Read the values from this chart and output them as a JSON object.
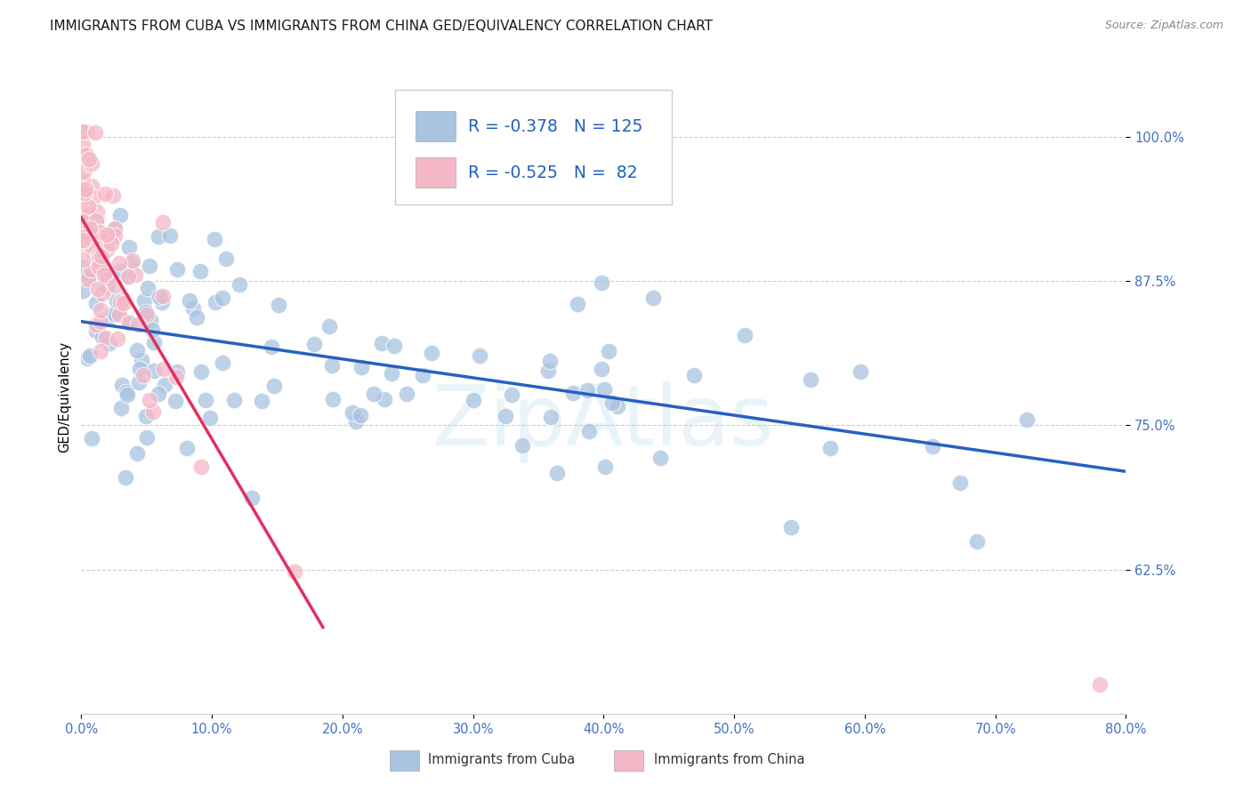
{
  "title": "IMMIGRANTS FROM CUBA VS IMMIGRANTS FROM CHINA GED/EQUIVALENCY CORRELATION CHART",
  "source": "Source: ZipAtlas.com",
  "ylabel": "GED/Equivalency",
  "yticks": [
    0.625,
    0.75,
    0.875,
    1.0
  ],
  "ytick_labels": [
    "62.5%",
    "75.0%",
    "87.5%",
    "100.0%"
  ],
  "xmin": 0.0,
  "xmax": 0.8,
  "ymin": 0.5,
  "ymax": 1.05,
  "cuba_color": "#a8c4e0",
  "china_color": "#f4b8c8",
  "cuba_line_color": "#2860c0",
  "china_line_color": "#e03060",
  "cuba_R": -0.378,
  "cuba_N": 125,
  "china_R": -0.525,
  "china_N": 82,
  "legend_text_color": "#2060c0",
  "title_color": "#1a1a1a",
  "source_color": "#888888",
  "axis_label_color": "#4472c4",
  "grid_color": "#cccccc",
  "cuba_line_x0": 0.0,
  "cuba_line_x1": 0.8,
  "cuba_line_y0": 0.84,
  "cuba_line_y1": 0.71,
  "china_line_x0": 0.0,
  "china_line_x1": 0.185,
  "china_line_y0": 0.93,
  "china_line_y1": 0.575
}
